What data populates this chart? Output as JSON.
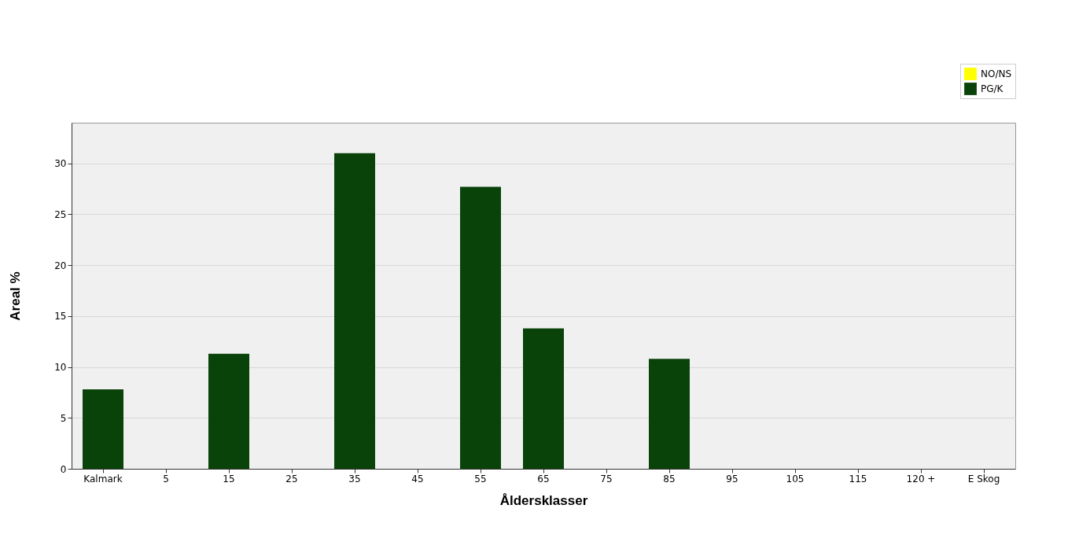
{
  "chart_data": {
    "type": "bar",
    "xlabel": "Åldersklasser",
    "ylabel": "Areal %",
    "categories": [
      "Kalmark",
      "5",
      "15",
      "25",
      "35",
      "45",
      "55",
      "65",
      "75",
      "85",
      "95",
      "105",
      "115",
      "120 +",
      "E Skog"
    ],
    "series": [
      {
        "name": "NO/NS",
        "color": "#ffff00",
        "values": [
          0,
          0,
          0,
          0,
          0,
          0,
          0,
          0,
          0,
          0,
          0,
          0,
          0,
          0,
          0
        ]
      },
      {
        "name": "PG/K",
        "color": "#0a430a",
        "values": [
          7.8,
          0,
          11.3,
          0,
          31.0,
          0,
          27.7,
          13.8,
          0,
          10.8,
          0,
          0,
          0,
          0,
          0
        ]
      }
    ],
    "ylim": [
      0,
      34
    ],
    "yticks": [
      0,
      5,
      10,
      15,
      20,
      25,
      30
    ],
    "grid": "y",
    "legend": "top right"
  }
}
